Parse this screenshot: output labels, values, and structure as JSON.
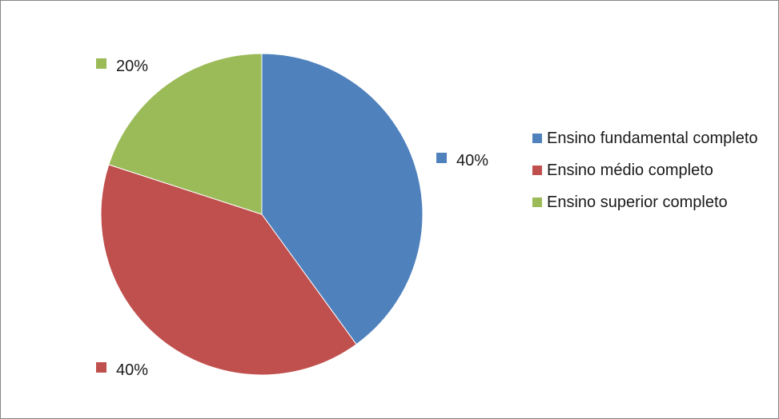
{
  "chart_data": {
    "type": "pie",
    "title": "",
    "categories": [
      "Ensino fundamental completo",
      "Ensino médio completo",
      "Ensino superior completo"
    ],
    "values": [
      40,
      40,
      20
    ],
    "data_labels": [
      "40%",
      "40%",
      "20%"
    ],
    "colors": [
      "#4f81bd",
      "#c0504d",
      "#9bbb59"
    ],
    "start_angle_deg": 0,
    "direction": "clockwise",
    "legend_position": "right"
  }
}
